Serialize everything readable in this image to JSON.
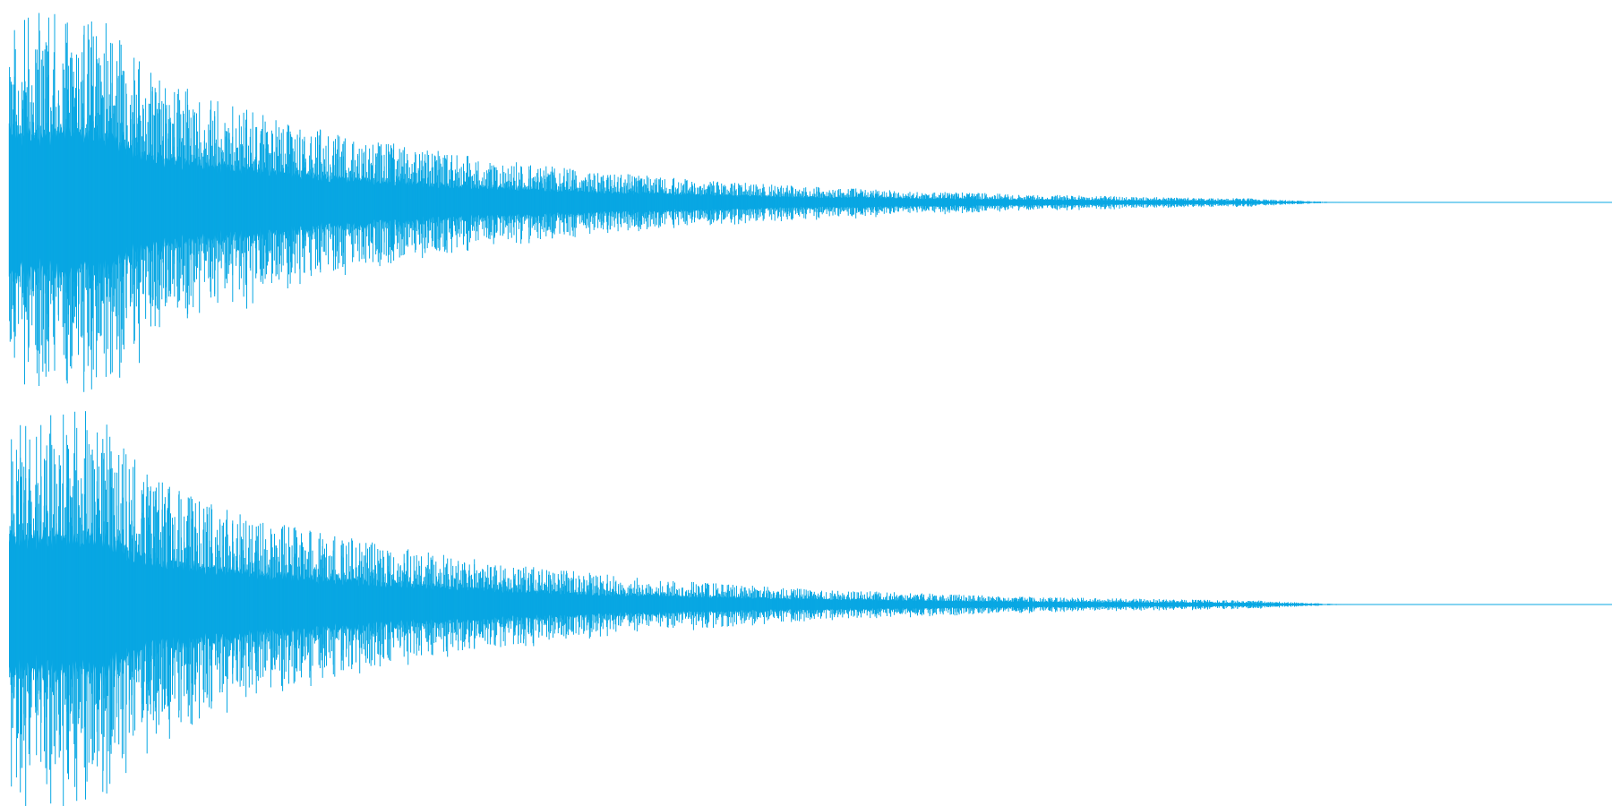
{
  "waveform": {
    "color": "#08a7e3",
    "background": "#ffffff",
    "channel_count": 2,
    "channels": [
      {
        "peak_amplitude": 1.0,
        "decay_end_fraction": 0.835,
        "line_fraction_end": 1.0
      },
      {
        "peak_amplitude": 0.98,
        "decay_end_fraction": 0.84,
        "line_fraction_end": 1.0
      }
    ]
  }
}
